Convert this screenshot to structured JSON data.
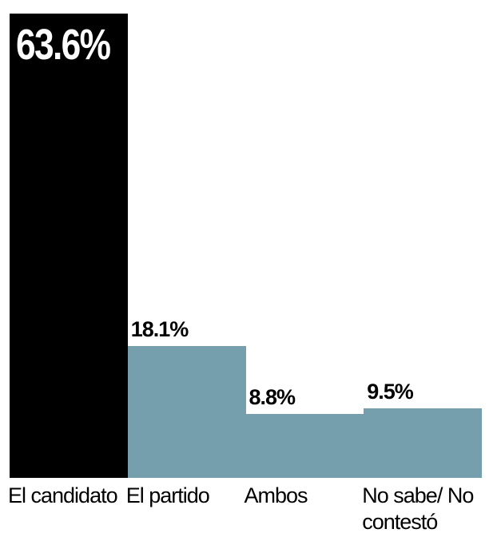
{
  "chart_data": {
    "type": "bar",
    "categories": [
      "El candidato",
      "El partido",
      "Ambos",
      "No sabe/ No contestó"
    ],
    "values": [
      63.6,
      18.1,
      8.8,
      9.5
    ],
    "value_labels": [
      "63.6%",
      "18.1%",
      "8.8%",
      "9.5%"
    ],
    "colors": [
      "#000000",
      "#769fad",
      "#769fad",
      "#769fad"
    ]
  }
}
